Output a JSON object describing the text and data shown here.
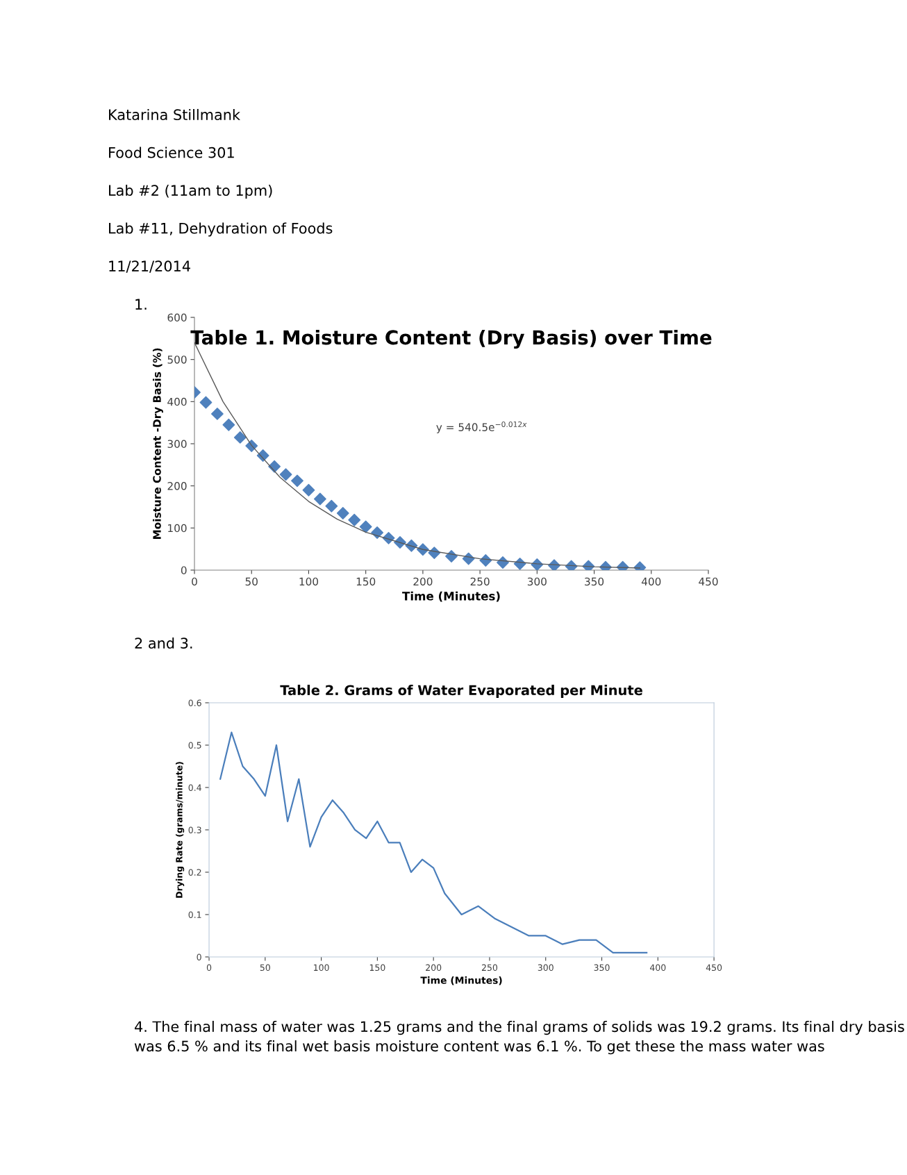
{
  "chart_data": [
    {
      "type": "scatter",
      "title": "Table 1. Moisture Content (Dry Basis) over Time",
      "xlabel": "Time (Minutes)",
      "ylabel": "Moisture Content -Dry Basis (%)",
      "annotations": [
        "y = 540.5e$^{−0.012x}$",
        "Katarina Stillmank",
        "Food Science 301",
        "Lab #2 (11am to 1pm)",
        "Lab #11, Dehydration of Foods",
        "11/21/2014",
        "1."
      ],
      "xlim": [
        0,
        450
      ],
      "xticks": [
        0,
        50,
        100,
        150,
        200,
        250,
        300,
        350,
        400,
        450
      ],
      "ylim": [
        0,
        600
      ],
      "yticks": [
        0,
        100,
        200,
        300,
        400,
        500,
        600
      ],
      "grid": false,
      "series": [
        {
          "type": "scatter",
          "marker": "diamond",
          "color": "#4f81bd",
          "x": [
            0,
            10,
            20,
            30,
            40,
            50,
            60,
            70,
            80,
            90,
            100,
            110,
            120,
            130,
            140,
            150,
            160,
            170,
            180,
            190,
            200,
            210,
            225,
            240,
            255,
            270,
            285,
            300,
            315,
            330,
            345,
            360,
            375,
            390
          ],
          "values": [
            422,
            398,
            371,
            345,
            315,
            295,
            272,
            246,
            227,
            212,
            190,
            169,
            152,
            135,
            119,
            103,
            89,
            76,
            66,
            58,
            49,
            41,
            33,
            27,
            23,
            18,
            15,
            13,
            11,
            9,
            9,
            7,
            7,
            6
          ]
        },
        {
          "type": "line",
          "marker": "none",
          "line_style": "solid",
          "color": "#595959",
          "x": [
            0,
            25,
            50,
            75,
            100,
            125,
            150,
            200,
            250,
            300,
            350,
            390
          ],
          "values": [
            540,
            400,
            296,
            220,
            163,
            121,
            90,
            49,
            27,
            15,
            8,
            5
          ]
        }
      ]
    },
    {
      "type": "line",
      "title": "Table 2. Grams of Water Evaporated per Minute",
      "xlabel": "Time (Minutes)",
      "ylabel": "Drying Rate (grams/minute)",
      "annotations": [
        "2 and 3.",
        "4. The final mass of water was 1.25 grams and the final grams of solids was 19.2 grams. Its final dry basis was 6.5 % and its final wet basis moisture content was 6.1 %. To get these the mass water was"
      ],
      "xlim": [
        0,
        450
      ],
      "xticks": [
        0,
        50,
        100,
        150,
        200,
        250,
        300,
        350,
        400,
        450
      ],
      "ylim": [
        0,
        0.6
      ],
      "yticks": [
        0,
        0.1,
        0.2,
        0.3,
        0.4,
        0.5,
        0.6
      ],
      "grid": false,
      "marker": "none",
      "line_style": "solid",
      "series": [
        {
          "color": "#4a7ebb",
          "x": [
            10,
            20,
            30,
            40,
            50,
            60,
            70,
            80,
            90,
            100,
            110,
            120,
            130,
            140,
            150,
            160,
            170,
            180,
            190,
            200,
            210,
            225,
            240,
            255,
            270,
            285,
            300,
            315,
            330,
            345,
            360,
            375,
            390
          ],
          "values": [
            0.42,
            0.53,
            0.45,
            0.42,
            0.38,
            0.5,
            0.32,
            0.42,
            0.26,
            0.33,
            0.37,
            0.34,
            0.3,
            0.28,
            0.32,
            0.27,
            0.27,
            0.2,
            0.23,
            0.21,
            0.15,
            0.1,
            0.12,
            0.09,
            0.07,
            0.05,
            0.05,
            0.03,
            0.04,
            0.04,
            0.01,
            0.01,
            0.01
          ]
        }
      ]
    }
  ]
}
